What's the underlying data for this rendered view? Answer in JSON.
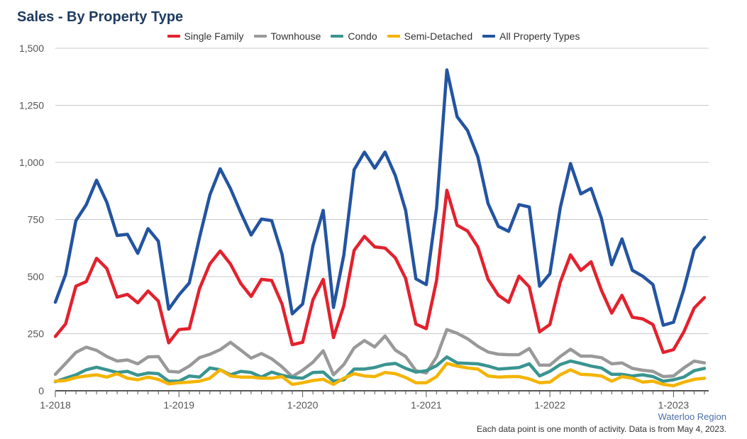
{
  "title": "Sales - By Property Type",
  "source": "Waterloo Region",
  "note": "Each data point is one month of activity. Data is from May 4, 2023.",
  "chart_data": {
    "type": "line",
    "title": "Sales - By Property Type",
    "xlabel": "",
    "ylabel": "",
    "ylim": [
      0,
      1500
    ],
    "yticks": [
      0,
      250,
      500,
      750,
      1000,
      1250,
      1500
    ],
    "ytick_labels": [
      "0",
      "250",
      "500",
      "750",
      "1,000",
      "1,250",
      "1,500"
    ],
    "xtick_labels": [
      "1-2018",
      "1-2019",
      "1-2020",
      "1-2021",
      "1-2022",
      "1-2023"
    ],
    "xtick_index": [
      0,
      12,
      24,
      36,
      48,
      60
    ],
    "grid": true,
    "legend_position": "top",
    "x": [
      "1-2018",
      "2-2018",
      "3-2018",
      "4-2018",
      "5-2018",
      "6-2018",
      "7-2018",
      "8-2018",
      "9-2018",
      "10-2018",
      "11-2018",
      "12-2018",
      "1-2019",
      "2-2019",
      "3-2019",
      "4-2019",
      "5-2019",
      "6-2019",
      "7-2019",
      "8-2019",
      "9-2019",
      "10-2019",
      "11-2019",
      "12-2019",
      "1-2020",
      "2-2020",
      "3-2020",
      "4-2020",
      "5-2020",
      "6-2020",
      "7-2020",
      "8-2020",
      "9-2020",
      "10-2020",
      "11-2020",
      "12-2020",
      "1-2021",
      "2-2021",
      "3-2021",
      "4-2021",
      "5-2021",
      "6-2021",
      "7-2021",
      "8-2021",
      "9-2021",
      "10-2021",
      "11-2021",
      "12-2021",
      "1-2022",
      "2-2022",
      "3-2022",
      "4-2022",
      "5-2022",
      "6-2022",
      "7-2022",
      "8-2022",
      "9-2022",
      "10-2022",
      "11-2022",
      "12-2022",
      "1-2023",
      "2-2023",
      "3-2023",
      "4-2023"
    ],
    "series": [
      {
        "name": "Single Family",
        "color": "#e3212d",
        "values": [
          238,
          293,
          458,
          478,
          580,
          535,
          410,
          422,
          385,
          437,
          393,
          210,
          268,
          272,
          448,
          556,
          612,
          555,
          470,
          413,
          488,
          483,
          380,
          202,
          212,
          398,
          488,
          233,
          373,
          615,
          676,
          630,
          625,
          582,
          492,
          292,
          272,
          483,
          878,
          725,
          700,
          630,
          488,
          418,
          387,
          502,
          455,
          258,
          290,
          475,
          595,
          527,
          565,
          440,
          340,
          418,
          322,
          315,
          290,
          168,
          180,
          258,
          362,
          408
        ]
      },
      {
        "name": "Townhouse",
        "color": "#999999",
        "values": [
          72,
          120,
          168,
          191,
          177,
          150,
          130,
          135,
          118,
          148,
          150,
          85,
          82,
          108,
          145,
          160,
          180,
          212,
          178,
          143,
          163,
          140,
          105,
          62,
          90,
          125,
          175,
          70,
          115,
          188,
          220,
          192,
          240,
          178,
          150,
          88,
          78,
          148,
          268,
          252,
          228,
          195,
          170,
          160,
          158,
          158,
          185,
          112,
          112,
          150,
          182,
          152,
          152,
          145,
          118,
          122,
          98,
          90,
          85,
          62,
          65,
          100,
          130,
          122
        ]
      },
      {
        "name": "Condo",
        "color": "#3a9490",
        "values": [
          40,
          55,
          70,
          92,
          103,
          92,
          80,
          85,
          68,
          78,
          75,
          42,
          42,
          65,
          60,
          100,
          92,
          70,
          85,
          80,
          60,
          82,
          68,
          58,
          55,
          80,
          82,
          42,
          48,
          95,
          95,
          102,
          115,
          120,
          98,
          82,
          88,
          110,
          148,
          122,
          120,
          118,
          108,
          95,
          98,
          102,
          118,
          65,
          85,
          115,
          130,
          120,
          108,
          100,
          72,
          72,
          65,
          70,
          62,
          42,
          48,
          60,
          88,
          98
        ]
      },
      {
        "name": "Semi-Detached",
        "color": "#f4b400",
        "values": [
          42,
          45,
          58,
          65,
          70,
          60,
          75,
          55,
          48,
          60,
          50,
          30,
          35,
          38,
          42,
          55,
          92,
          65,
          60,
          60,
          55,
          55,
          62,
          28,
          35,
          45,
          50,
          28,
          55,
          75,
          65,
          62,
          80,
          75,
          58,
          35,
          35,
          62,
          120,
          108,
          100,
          95,
          65,
          60,
          62,
          62,
          52,
          35,
          38,
          70,
          92,
          72,
          70,
          65,
          42,
          62,
          55,
          38,
          42,
          28,
          22,
          38,
          50,
          55
        ]
      },
      {
        "name": "All Property Types",
        "color": "#2354a0",
        "values": [
          388,
          510,
          745,
          815,
          922,
          825,
          680,
          685,
          602,
          710,
          655,
          357,
          420,
          472,
          672,
          858,
          972,
          885,
          780,
          682,
          752,
          745,
          598,
          337,
          380,
          635,
          790,
          365,
          595,
          968,
          1045,
          975,
          1045,
          942,
          790,
          490,
          465,
          800,
          1405,
          1200,
          1140,
          1025,
          820,
          720,
          698,
          815,
          805,
          458,
          512,
          800,
          995,
          862,
          886,
          755,
          552,
          665,
          528,
          502,
          465,
          287,
          300,
          445,
          618,
          672
        ]
      }
    ]
  }
}
